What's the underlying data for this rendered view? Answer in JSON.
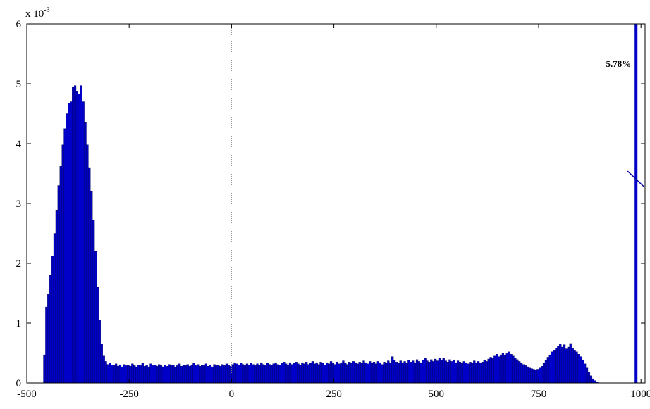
{
  "chart_data": {
    "type": "bar",
    "title": "",
    "xlabel": "",
    "ylabel": "",
    "y_exponent_base": "x 10",
    "y_exponent_power": "-3",
    "xlim": [
      -500,
      1010
    ],
    "ylim": [
      0,
      6
    ],
    "xticks": [
      "-500",
      "-250",
      "0",
      "250",
      "500",
      "750",
      "1000"
    ],
    "yticks": [
      "0",
      "1",
      "2",
      "3",
      "4",
      "5",
      "6"
    ],
    "bar_color": "#0000c8",
    "bar_edge_color": "#00004a",
    "reference_line_x": 0,
    "grid": false,
    "bin_width": 5,
    "bins": [
      [
        -457,
        0.47
      ],
      [
        -452,
        1.27
      ],
      [
        -447,
        1.48
      ],
      [
        -442,
        1.8
      ],
      [
        -437,
        2.12
      ],
      [
        -432,
        2.5
      ],
      [
        -427,
        2.88
      ],
      [
        -422,
        3.3
      ],
      [
        -417,
        3.62
      ],
      [
        -412,
        3.98
      ],
      [
        -407,
        4.25
      ],
      [
        -402,
        4.5
      ],
      [
        -397,
        4.68
      ],
      [
        -392,
        4.7
      ],
      [
        -387,
        4.95
      ],
      [
        -382,
        4.97
      ],
      [
        -377,
        4.88
      ],
      [
        -372,
        4.83
      ],
      [
        -367,
        4.97
      ],
      [
        -362,
        4.7
      ],
      [
        -357,
        4.35
      ],
      [
        -352,
        3.98
      ],
      [
        -347,
        3.6
      ],
      [
        -342,
        3.2
      ],
      [
        -337,
        2.72
      ],
      [
        -332,
        2.2
      ],
      [
        -327,
        1.6
      ],
      [
        -322,
        1.05
      ],
      [
        -317,
        0.65
      ],
      [
        -312,
        0.45
      ],
      [
        -307,
        0.36
      ],
      [
        -302,
        0.31
      ],
      [
        -297,
        0.33
      ],
      [
        -292,
        0.3
      ],
      [
        -287,
        0.29
      ],
      [
        -282,
        0.32
      ],
      [
        -277,
        0.28
      ],
      [
        -272,
        0.3
      ],
      [
        -267,
        0.27
      ],
      [
        -262,
        0.31
      ],
      [
        -257,
        0.29
      ],
      [
        -252,
        0.3
      ],
      [
        -247,
        0.28
      ],
      [
        -242,
        0.32
      ],
      [
        -237,
        0.29
      ],
      [
        -232,
        0.27
      ],
      [
        -227,
        0.3
      ],
      [
        -222,
        0.29
      ],
      [
        -217,
        0.33
      ],
      [
        -212,
        0.28
      ],
      [
        -207,
        0.3
      ],
      [
        -202,
        0.27
      ],
      [
        -197,
        0.32
      ],
      [
        -192,
        0.29
      ],
      [
        -187,
        0.3
      ],
      [
        -182,
        0.28
      ],
      [
        -177,
        0.31
      ],
      [
        -172,
        0.29
      ],
      [
        -167,
        0.27
      ],
      [
        -162,
        0.3
      ],
      [
        -157,
        0.28
      ],
      [
        -152,
        0.31
      ],
      [
        -147,
        0.29
      ],
      [
        -142,
        0.3
      ],
      [
        -137,
        0.27
      ],
      [
        -132,
        0.29
      ],
      [
        -127,
        0.32
      ],
      [
        -122,
        0.28
      ],
      [
        -117,
        0.3
      ],
      [
        -112,
        0.29
      ],
      [
        -107,
        0.31
      ],
      [
        -102,
        0.28
      ],
      [
        -97,
        0.3
      ],
      [
        -92,
        0.33
      ],
      [
        -87,
        0.29
      ],
      [
        -82,
        0.31
      ],
      [
        -77,
        0.28
      ],
      [
        -72,
        0.3
      ],
      [
        -67,
        0.29
      ],
      [
        -62,
        0.32
      ],
      [
        -57,
        0.28
      ],
      [
        -52,
        0.3
      ],
      [
        -47,
        0.27
      ],
      [
        -42,
        0.31
      ],
      [
        -37,
        0.29
      ],
      [
        -32,
        0.3
      ],
      [
        -27,
        0.28
      ],
      [
        -22,
        0.31
      ],
      [
        -17,
        0.29
      ],
      [
        -12,
        0.32
      ],
      [
        -7,
        0.3
      ],
      [
        -2,
        0.28
      ],
      [
        3,
        0.31
      ],
      [
        8,
        0.34
      ],
      [
        13,
        0.32
      ],
      [
        18,
        0.3
      ],
      [
        23,
        0.33
      ],
      [
        28,
        0.31
      ],
      [
        33,
        0.29
      ],
      [
        38,
        0.32
      ],
      [
        43,
        0.3
      ],
      [
        48,
        0.33
      ],
      [
        53,
        0.31
      ],
      [
        58,
        0.29
      ],
      [
        63,
        0.32
      ],
      [
        68,
        0.3
      ],
      [
        73,
        0.34
      ],
      [
        78,
        0.31
      ],
      [
        83,
        0.29
      ],
      [
        88,
        0.33
      ],
      [
        93,
        0.31
      ],
      [
        98,
        0.3
      ],
      [
        103,
        0.32
      ],
      [
        108,
        0.34
      ],
      [
        113,
        0.31
      ],
      [
        118,
        0.3
      ],
      [
        123,
        0.33
      ],
      [
        128,
        0.35
      ],
      [
        133,
        0.32
      ],
      [
        138,
        0.3
      ],
      [
        143,
        0.34
      ],
      [
        148,
        0.31
      ],
      [
        153,
        0.33
      ],
      [
        158,
        0.35
      ],
      [
        163,
        0.32
      ],
      [
        168,
        0.3
      ],
      [
        173,
        0.34
      ],
      [
        178,
        0.32
      ],
      [
        183,
        0.35
      ],
      [
        188,
        0.31
      ],
      [
        193,
        0.33
      ],
      [
        198,
        0.36
      ],
      [
        203,
        0.32
      ],
      [
        208,
        0.34
      ],
      [
        213,
        0.31
      ],
      [
        218,
        0.35
      ],
      [
        223,
        0.33
      ],
      [
        228,
        0.3
      ],
      [
        233,
        0.34
      ],
      [
        238,
        0.32
      ],
      [
        243,
        0.36
      ],
      [
        248,
        0.33
      ],
      [
        253,
        0.31
      ],
      [
        258,
        0.35
      ],
      [
        263,
        0.32
      ],
      [
        268,
        0.34
      ],
      [
        273,
        0.37
      ],
      [
        278,
        0.33
      ],
      [
        283,
        0.31
      ],
      [
        288,
        0.35
      ],
      [
        293,
        0.33
      ],
      [
        298,
        0.36
      ],
      [
        303,
        0.34
      ],
      [
        308,
        0.32
      ],
      [
        313,
        0.35
      ],
      [
        318,
        0.33
      ],
      [
        323,
        0.37
      ],
      [
        328,
        0.34
      ],
      [
        333,
        0.32
      ],
      [
        338,
        0.36
      ],
      [
        343,
        0.33
      ],
      [
        348,
        0.35
      ],
      [
        353,
        0.32
      ],
      [
        358,
        0.36
      ],
      [
        363,
        0.34
      ],
      [
        368,
        0.31
      ],
      [
        373,
        0.35
      ],
      [
        378,
        0.33
      ],
      [
        383,
        0.37
      ],
      [
        388,
        0.34
      ],
      [
        393,
        0.44
      ],
      [
        398,
        0.38
      ],
      [
        403,
        0.35
      ],
      [
        408,
        0.33
      ],
      [
        413,
        0.37
      ],
      [
        418,
        0.34
      ],
      [
        423,
        0.36
      ],
      [
        428,
        0.33
      ],
      [
        433,
        0.38
      ],
      [
        438,
        0.35
      ],
      [
        443,
        0.37
      ],
      [
        448,
        0.34
      ],
      [
        453,
        0.39
      ],
      [
        458,
        0.36
      ],
      [
        463,
        0.34
      ],
      [
        468,
        0.38
      ],
      [
        473,
        0.41
      ],
      [
        478,
        0.37
      ],
      [
        483,
        0.35
      ],
      [
        488,
        0.39
      ],
      [
        493,
        0.36
      ],
      [
        498,
        0.4
      ],
      [
        503,
        0.37
      ],
      [
        508,
        0.42
      ],
      [
        513,
        0.38
      ],
      [
        518,
        0.41
      ],
      [
        523,
        0.37
      ],
      [
        528,
        0.35
      ],
      [
        533,
        0.39
      ],
      [
        538,
        0.36
      ],
      [
        543,
        0.38
      ],
      [
        548,
        0.34
      ],
      [
        553,
        0.37
      ],
      [
        558,
        0.35
      ],
      [
        563,
        0.33
      ],
      [
        568,
        0.36
      ],
      [
        573,
        0.34
      ],
      [
        578,
        0.32
      ],
      [
        583,
        0.35
      ],
      [
        588,
        0.33
      ],
      [
        593,
        0.37
      ],
      [
        598,
        0.34
      ],
      [
        603,
        0.36
      ],
      [
        608,
        0.33
      ],
      [
        613,
        0.35
      ],
      [
        618,
        0.38
      ],
      [
        623,
        0.36
      ],
      [
        628,
        0.4
      ],
      [
        633,
        0.43
      ],
      [
        638,
        0.41
      ],
      [
        643,
        0.45
      ],
      [
        648,
        0.48
      ],
      [
        653,
        0.44
      ],
      [
        658,
        0.47
      ],
      [
        663,
        0.5
      ],
      [
        668,
        0.46
      ],
      [
        673,
        0.49
      ],
      [
        678,
        0.52
      ],
      [
        683,
        0.48
      ],
      [
        688,
        0.45
      ],
      [
        693,
        0.42
      ],
      [
        698,
        0.39
      ],
      [
        703,
        0.36
      ],
      [
        708,
        0.33
      ],
      [
        713,
        0.31
      ],
      [
        718,
        0.29
      ],
      [
        723,
        0.27
      ],
      [
        728,
        0.25
      ],
      [
        733,
        0.24
      ],
      [
        738,
        0.23
      ],
      [
        743,
        0.22
      ],
      [
        748,
        0.23
      ],
      [
        753,
        0.25
      ],
      [
        758,
        0.28
      ],
      [
        763,
        0.33
      ],
      [
        768,
        0.38
      ],
      [
        773,
        0.43
      ],
      [
        778,
        0.47
      ],
      [
        783,
        0.52
      ],
      [
        788,
        0.55
      ],
      [
        793,
        0.58
      ],
      [
        798,
        0.62
      ],
      [
        803,
        0.65
      ],
      [
        808,
        0.6
      ],
      [
        813,
        0.64
      ],
      [
        818,
        0.57
      ],
      [
        823,
        0.6
      ],
      [
        828,
        0.66
      ],
      [
        833,
        0.58
      ],
      [
        838,
        0.55
      ],
      [
        843,
        0.52
      ],
      [
        848,
        0.48
      ],
      [
        853,
        0.44
      ],
      [
        858,
        0.38
      ],
      [
        863,
        0.32
      ],
      [
        868,
        0.25
      ],
      [
        873,
        0.18
      ],
      [
        878,
        0.12
      ],
      [
        883,
        0.07
      ],
      [
        888,
        0.04
      ],
      [
        893,
        0.02
      ]
    ],
    "overflow_bar": {
      "x": 988,
      "value": 6,
      "label": "5.78%"
    }
  }
}
